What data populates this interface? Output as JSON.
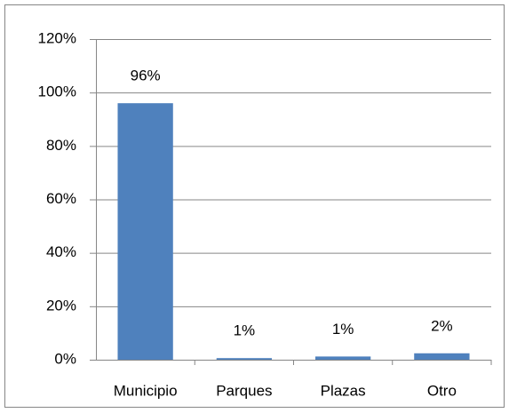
{
  "chart_data": {
    "type": "bar",
    "categories": [
      "Municipio",
      "Parques",
      "Plazas",
      "Otro"
    ],
    "values": [
      96,
      0.6,
      1.2,
      2.4
    ],
    "value_labels": [
      "96%",
      "1%",
      "1%",
      "2%"
    ],
    "color": "#4f81bd",
    "ylim": [
      0,
      120
    ],
    "yticks": [
      {
        "value": 0,
        "label": "0%"
      },
      {
        "value": 20,
        "label": "20%"
      },
      {
        "value": 40,
        "label": "40%"
      },
      {
        "value": 60,
        "label": "60%"
      },
      {
        "value": 80,
        "label": "80%"
      },
      {
        "value": 100,
        "label": "100%"
      },
      {
        "value": 120,
        "label": "120%"
      }
    ],
    "grid": true
  }
}
